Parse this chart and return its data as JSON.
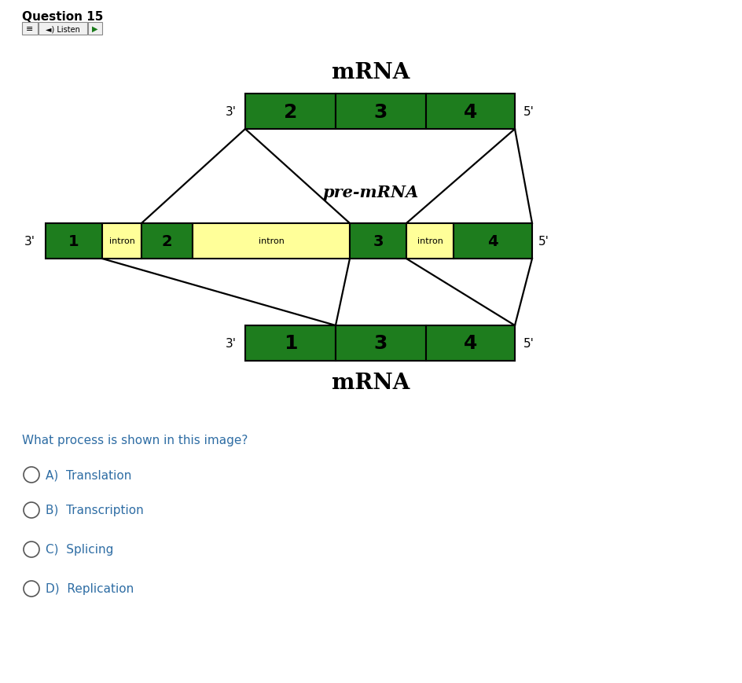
{
  "background_color": "#ffffff",
  "dark_green": "#1e7d1e",
  "light_yellow": "#ffff99",
  "black": "#000000",
  "question_color": "#2e6da4",
  "option_color": "#2e6da4",
  "title": "Question 15",
  "mrna_label": "mRNA",
  "premrna_label": "pre-mRNA",
  "question_text": "What process is shown in this image?",
  "options": [
    "A)  Translation",
    "B)  Transcription",
    "C)  Splicing",
    "D)  Replication"
  ],
  "top_mrna_labels": [
    "2",
    "3",
    "4"
  ],
  "bottom_mrna_labels": [
    "1",
    "3",
    "4"
  ],
  "premrna_labels": [
    "1",
    "intron",
    "2",
    "intron",
    "3",
    "intron",
    "4"
  ],
  "premrna_is_intron": [
    false,
    true,
    false,
    true,
    false,
    true,
    false
  ]
}
